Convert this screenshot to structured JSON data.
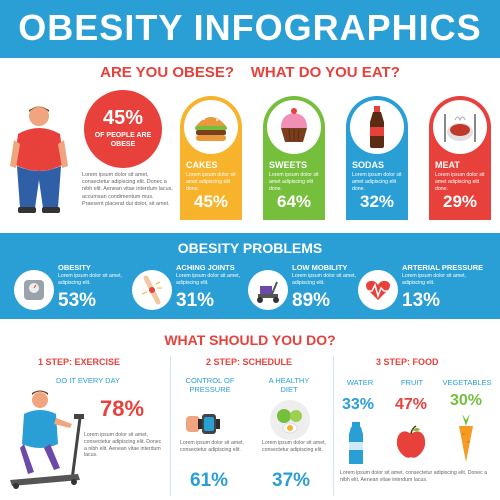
{
  "header": {
    "title": "OBESITY INFOGRAPHICS"
  },
  "section1": {
    "question_left": "ARE YOU OBESE?",
    "question_right": "WHAT DO YOU EAT?",
    "stat": {
      "value": "45%",
      "label": "OF PEOPLE ARE OBESE"
    },
    "description": "Lorem ipsum dolor sit amet, consectetur adipiscing elit. Donec a nibh elit. Aenean vitae interdum lacus, accumsan condimentum mus. Praesent placerat dui dolor, sit amet.",
    "foods": [
      {
        "label": "CAKES",
        "desc": "Lorem ipsum dolor sit amet adipiscing elit done.",
        "value": "45%",
        "color": "#f7b32b",
        "icon": "burger-icon"
      },
      {
        "label": "SWEETS",
        "desc": "Lorem ipsum dolor sit amet adipiscing elit done.",
        "value": "64%",
        "color": "#76bf3c",
        "icon": "cupcake-icon"
      },
      {
        "label": "SODAS",
        "desc": "Lorem ipsum dolor sit amet adipiscing elit done.",
        "value": "32%",
        "color": "#2a9fd6",
        "icon": "soda-bottle-icon"
      },
      {
        "label": "MEAT",
        "desc": "Lorem ipsum dolor sit amet adipiscing elit done.",
        "value": "29%",
        "color": "#e8413c",
        "icon": "meat-plate-icon"
      }
    ]
  },
  "section2": {
    "title": "OBESITY PROBLEMS",
    "problems": [
      {
        "label": "OBESITY",
        "desc": "Lorem ipsum dolor sit amet, adipiscing elit.",
        "value": "53%",
        "icon": "scale-icon"
      },
      {
        "label": "ACHING JOINTS",
        "desc": "Lorem ipsum dolor sit amet, adipiscing elit.",
        "value": "31%",
        "icon": "joint-icon"
      },
      {
        "label": "LOW MOBILITY",
        "desc": "Lorem ipsum dolor sit amet, adipiscing elit.",
        "value": "89%",
        "icon": "mobility-scooter-icon"
      },
      {
        "label": "ARTERIAL PRESSURE",
        "desc": "Lorem ipsum dolor sit amet, adipiscing elit.",
        "value": "13%",
        "icon": "heartbeat-icon"
      }
    ]
  },
  "section3": {
    "title": "WHAT SHOULD YOU DO?",
    "exercise": {
      "step": "1 STEP: EXERCISE",
      "sub": "DO IT EVERY DAY",
      "value": "78%",
      "desc": "Lorem ipsum dolor sit amet, consectetur adipiscing elit. Donec a nibh elit. Aenean vitae interdum lacus."
    },
    "schedule": {
      "step": "2 STEP: SCHEDULE",
      "items": [
        {
          "label": "CONTROL OF PRESSURE",
          "desc": "Lorem ipsum dolor sit amet, consectetur adipiscing elit.",
          "value": "61%",
          "icon": "watch-icon"
        },
        {
          "label": "A HEALTHY DIET",
          "desc": "Lorem ipsum dolor sit amet, consectetur adipiscing elit.",
          "value": "37%",
          "icon": "healthy-plate-icon"
        }
      ]
    },
    "food": {
      "step": "3 STEP: FOOD",
      "items": [
        {
          "label": "WATER",
          "value": "33%",
          "color": "#2a9fd6",
          "icon": "water-bottle-icon"
        },
        {
          "label": "FRUIT",
          "value": "47%",
          "color": "#e8413c",
          "icon": "apple-icon"
        },
        {
          "label": "VEGETABLES",
          "value": "30%",
          "color": "#76bf3c",
          "icon": "carrot-icon"
        }
      ],
      "desc": "Lorem ipsum dolor sit amet, consectetur adipiscing elit. Donec a nibh elit. Aenean vitae interdum lacus."
    }
  }
}
